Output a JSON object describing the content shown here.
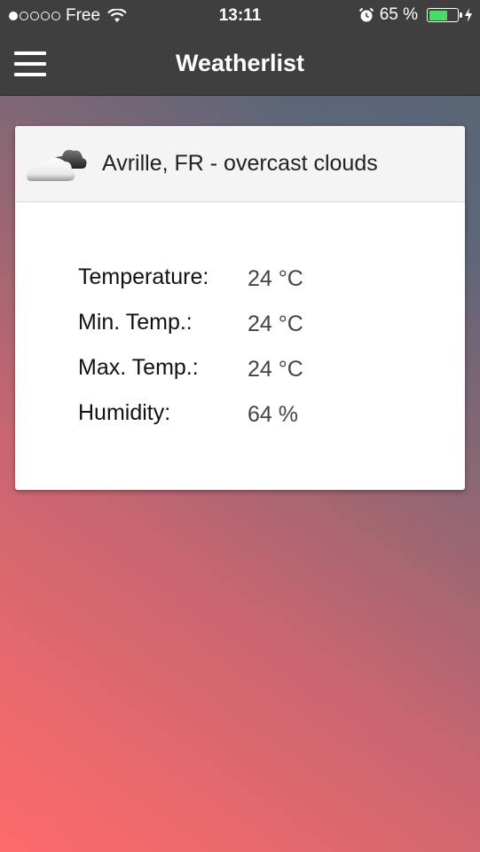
{
  "status_bar": {
    "carrier": "Free",
    "signal_bars": 1,
    "signal_total": 5,
    "time": "13:11",
    "battery_text": "65 %",
    "battery_level": 0.65,
    "battery_color": "#4cd964"
  },
  "nav": {
    "title": "Weatherlist",
    "menu_icon": "hamburger-menu-icon"
  },
  "card": {
    "icon": "cloud-icon",
    "title": "Avrille, FR - overcast clouds",
    "rows": [
      {
        "label": "Temperature:",
        "value": "24 °C"
      },
      {
        "label": "Min. Temp.:",
        "value": "24 °C"
      },
      {
        "label": "Max. Temp.:",
        "value": "24 °C"
      },
      {
        "label": "Humidity:",
        "value": "64 %"
      }
    ]
  }
}
